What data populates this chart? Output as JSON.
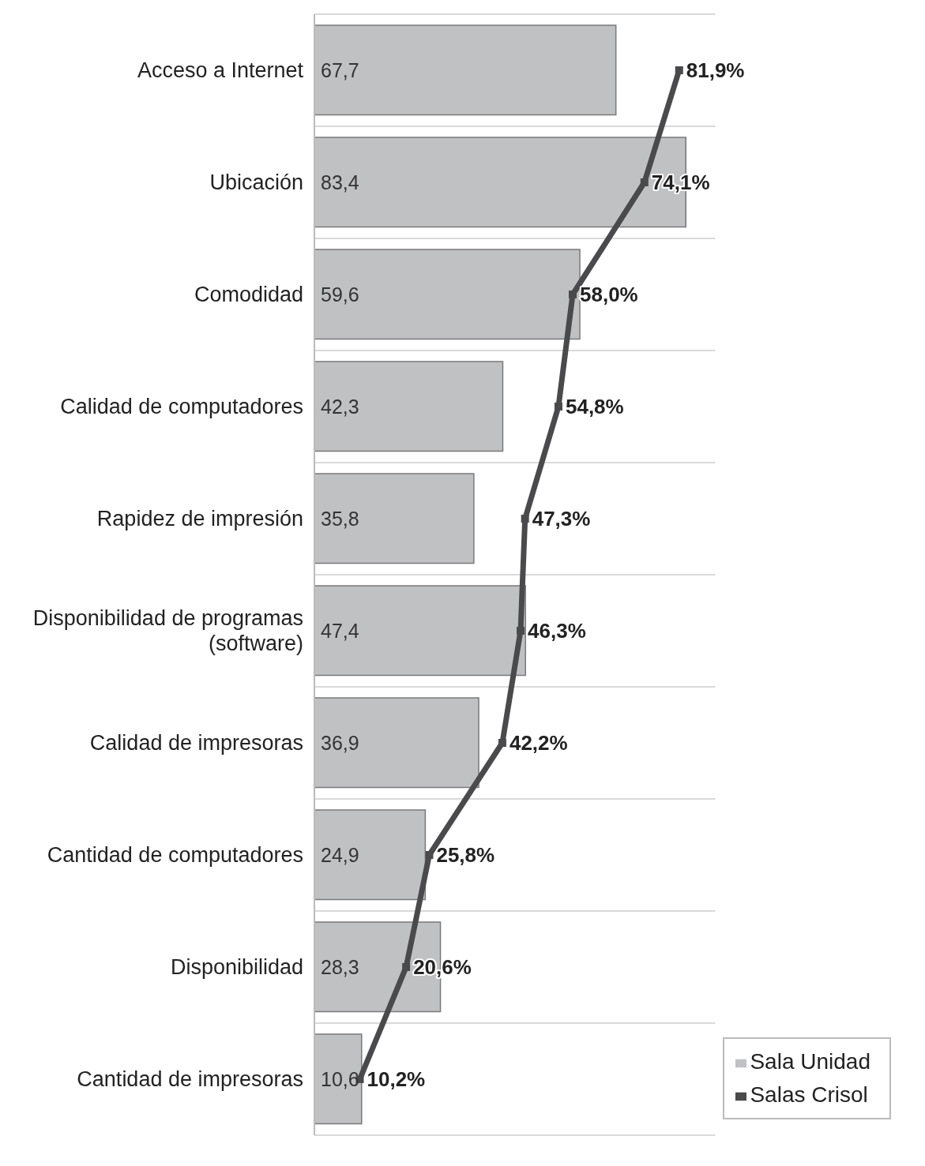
{
  "chart_data": {
    "type": "bar",
    "orientation": "horizontal",
    "categories": [
      "Acceso a Internet",
      "Ubicación",
      "Comodidad",
      "Calidad de computadores",
      "Rapidez de impresión",
      "Disponibilidad de programas (software)",
      "Calidad de impresoras",
      "Cantidad de computadores",
      "Disponibilidad",
      "Cantidad de impresoras"
    ],
    "series": [
      {
        "name": "Salas Crisol",
        "type": "line",
        "color": "#4a4a4c",
        "marker": "square",
        "values": [
          81.9,
          74.1,
          58.0,
          54.8,
          47.3,
          46.3,
          42.2,
          25.8,
          20.6,
          10.2
        ],
        "value_labels": [
          "81,9%",
          "74,1%",
          "58,0%",
          "54,8%",
          "47,3%",
          "46,3%",
          "42,2%",
          "25,8%",
          "20,6%",
          "10,2%"
        ]
      },
      {
        "name": "Sala Unidad",
        "type": "bar",
        "color": "#c0c1c3",
        "values": [
          67.7,
          83.4,
          59.6,
          42.3,
          35.8,
          47.4,
          36.9,
          24.9,
          28.3,
          10.6
        ],
        "value_labels": [
          "67,7",
          "83,4",
          "59,6",
          "42,3",
          "35,8",
          "47,4",
          "36,9",
          "24,9",
          "28,3",
          "10,6"
        ]
      }
    ],
    "xlim": [
      0,
      90
    ],
    "tick_labels": "y",
    "grid": "y",
    "legend": "bottom right"
  }
}
